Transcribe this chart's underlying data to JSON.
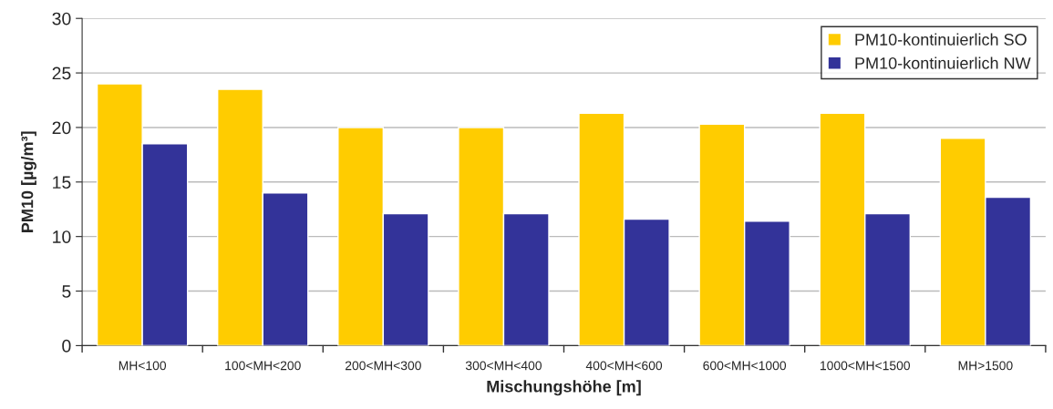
{
  "chart_data": {
    "type": "bar",
    "xlabel": "Mischungshöhe [m]",
    "ylabel": "PM10 [µg/m³]",
    "categories": [
      "MH<100",
      "100<MH<200",
      "200<MH<300",
      "300<MH<400",
      "400<MH<600",
      "600<MH<1000",
      "1000<MH<1500",
      "MH>1500"
    ],
    "series": [
      {
        "name": "PM10-kontinuierlich SO",
        "color": "#ffcc00",
        "values": [
          24,
          23.5,
          20,
          20,
          21.3,
          20.3,
          21.3,
          19
        ]
      },
      {
        "name": "PM10-kontinuierlich NW",
        "color": "#333399",
        "values": [
          18.5,
          14,
          12.1,
          12.1,
          11.6,
          11.4,
          12.1,
          13.6
        ]
      }
    ],
    "ylim": [
      0,
      30
    ],
    "yticks": [
      0,
      5,
      10,
      15,
      20,
      25,
      30
    ],
    "grid": "y",
    "legend": "top right"
  }
}
